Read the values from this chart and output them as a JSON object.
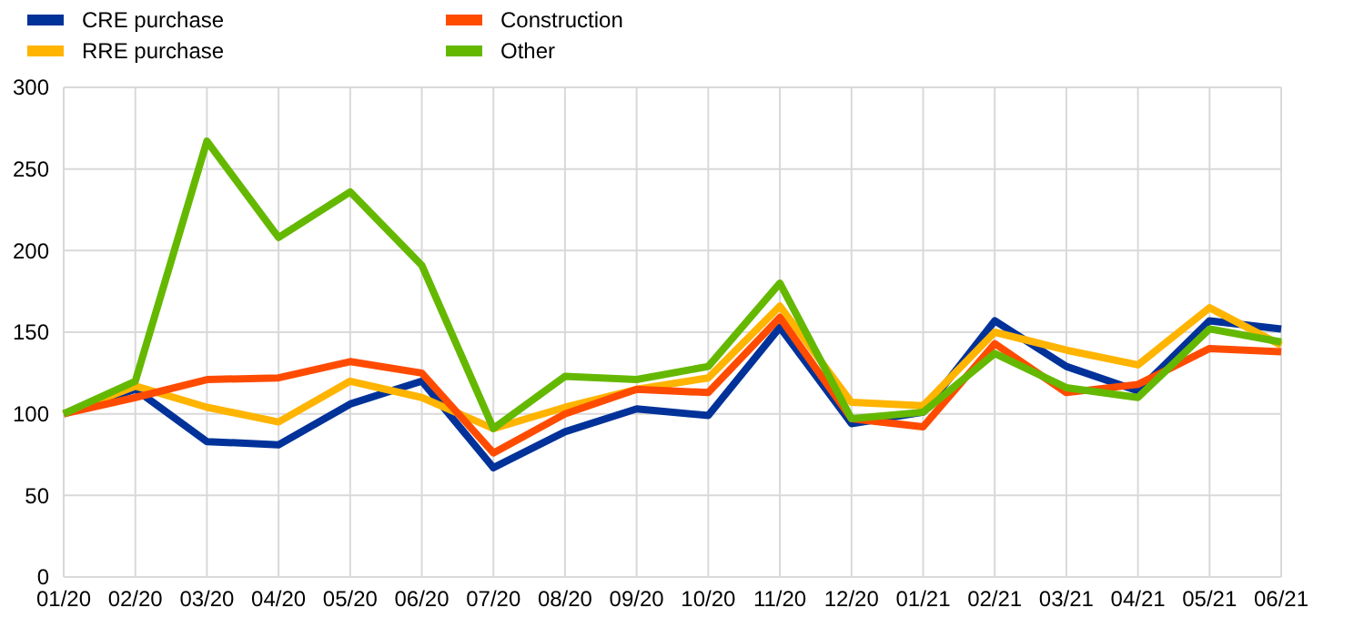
{
  "chart_data": {
    "type": "line",
    "categories": [
      "01/20",
      "02/20",
      "03/20",
      "04/20",
      "05/20",
      "06/20",
      "07/20",
      "08/20",
      "09/20",
      "10/20",
      "11/20",
      "12/20",
      "01/21",
      "02/21",
      "03/21",
      "04/21",
      "05/21",
      "06/21"
    ],
    "series": [
      {
        "name": "CRE purchase",
        "color": "#003299",
        "values": [
          100,
          115,
          83,
          81,
          106,
          120,
          67,
          89,
          103,
          99,
          153,
          94,
          101,
          157,
          129,
          114,
          157,
          152
        ]
      },
      {
        "name": "RRE purchase",
        "color": "#ffb400",
        "values": [
          100,
          117,
          104,
          95,
          120,
          110,
          91,
          104,
          115,
          122,
          166,
          107,
          105,
          150,
          139,
          130,
          165,
          142
        ]
      },
      {
        "name": "Construction",
        "color": "#ff4b00",
        "values": [
          100,
          110,
          121,
          122,
          132,
          125,
          76,
          100,
          115,
          113,
          159,
          97,
          92,
          143,
          113,
          118,
          140,
          138
        ]
      },
      {
        "name": "Other",
        "color": "#65b800",
        "values": [
          100,
          120,
          267,
          208,
          236,
          191,
          91,
          123,
          121,
          129,
          180,
          97,
          101,
          137,
          116,
          110,
          152,
          144
        ]
      }
    ],
    "ylim": [
      0,
      300
    ],
    "yticks": [
      0,
      50,
      100,
      150,
      200,
      250,
      300
    ],
    "grid": true,
    "legend": "top left",
    "marker": "none",
    "line_style": "solid"
  }
}
